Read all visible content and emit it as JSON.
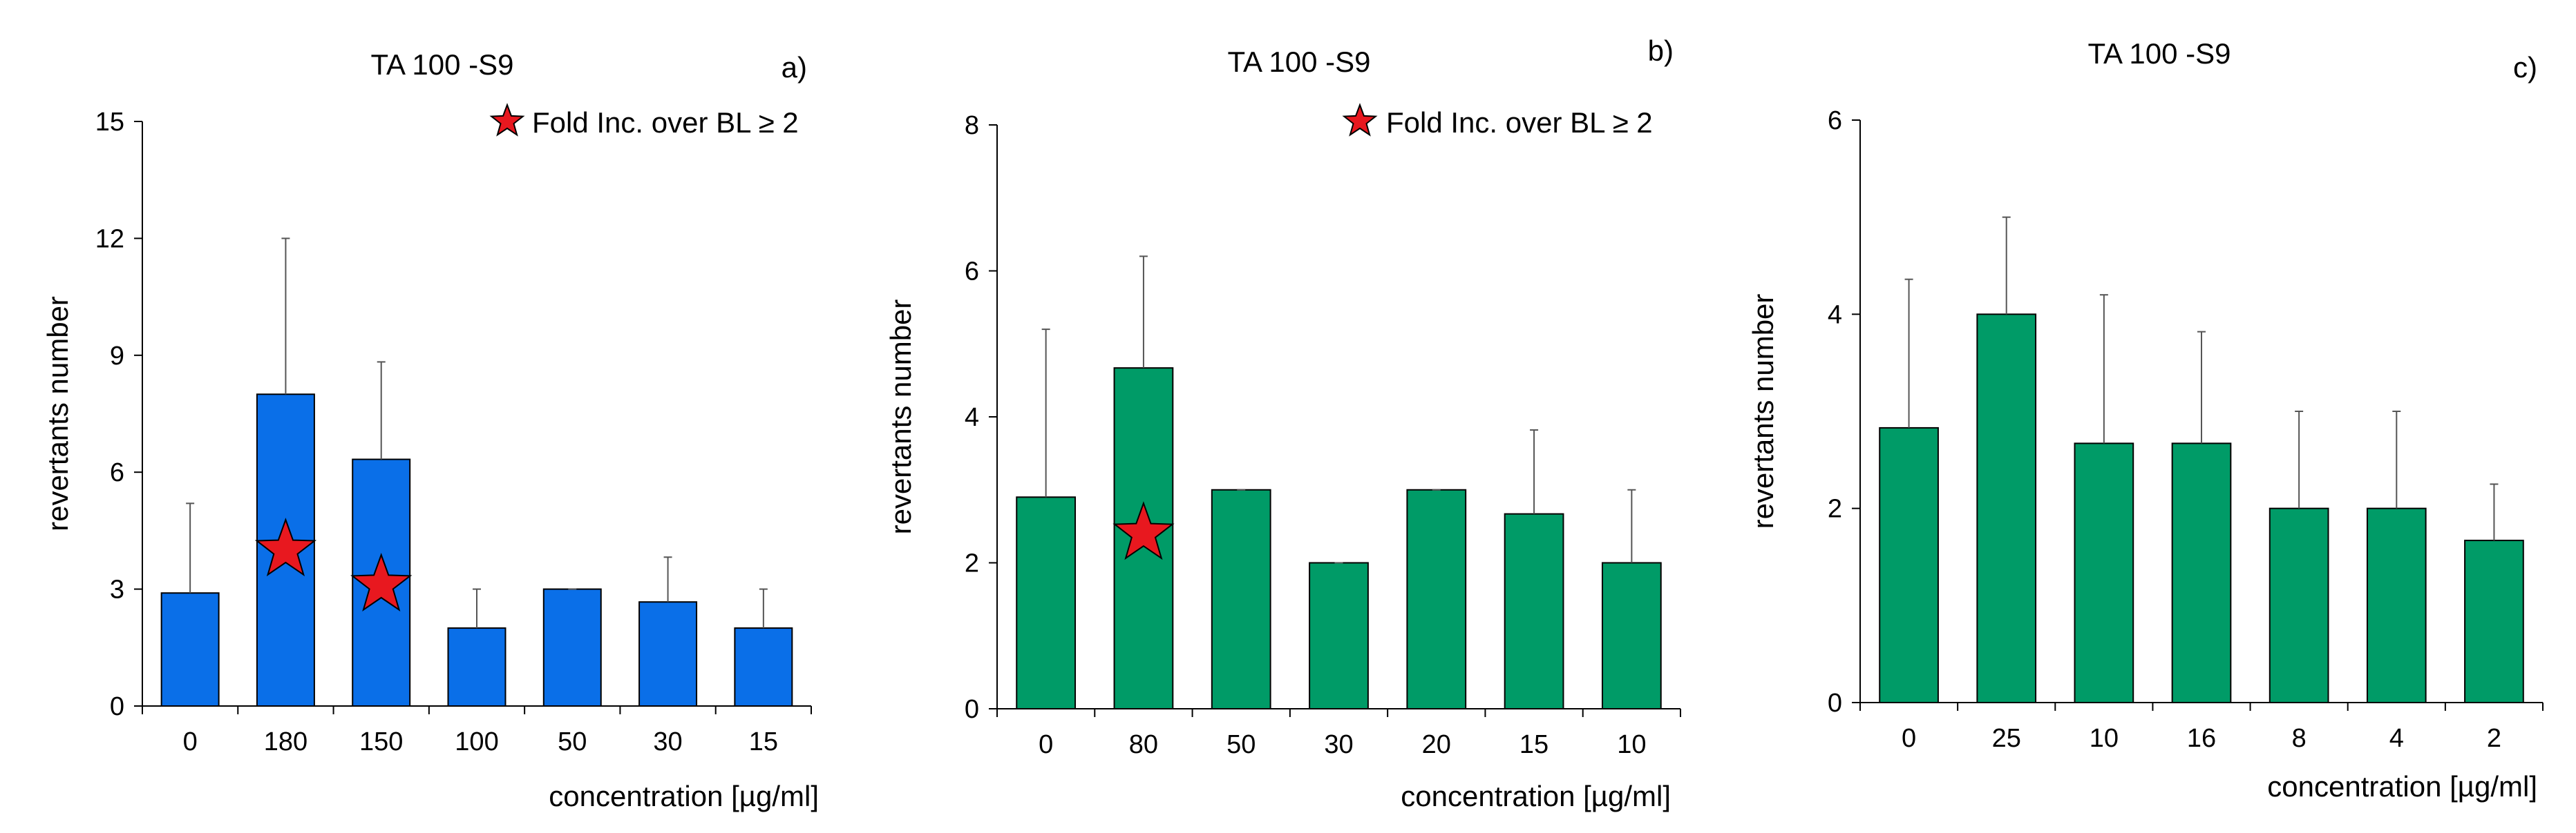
{
  "chart_data": [
    {
      "type": "bar",
      "title": "TA 100 -S9",
      "panel_label": "a)",
      "xlabel": "concentration [µg/ml]",
      "ylabel": "revertants number",
      "ylim": [
        0,
        15
      ],
      "yticks": [
        0,
        3,
        6,
        9,
        12,
        15
      ],
      "categories": [
        "0",
        "180",
        "150",
        "100",
        "50",
        "30",
        "15"
      ],
      "values": [
        2.9,
        8.0,
        6.33,
        2.0,
        3.0,
        2.67,
        2.0
      ],
      "errors": [
        2.3,
        4.0,
        2.5,
        1.0,
        0,
        1.15,
        1.0
      ],
      "bar_color": "#0A6FE8",
      "stars": [
        1,
        2
      ],
      "star_values": [
        4.0,
        3.1
      ],
      "legend": "Fold Inc. over BL ≥ 2",
      "grid": false
    },
    {
      "type": "bar",
      "title": "TA 100 -S9",
      "panel_label": "b)",
      "xlabel": "concentration [µg/ml]",
      "ylabel": "revertants number",
      "ylim": [
        0,
        8
      ],
      "yticks": [
        0,
        2,
        4,
        6,
        8
      ],
      "categories": [
        "0",
        "80",
        "50",
        "30",
        "20",
        "15",
        "10"
      ],
      "values": [
        2.9,
        4.67,
        3.0,
        2.0,
        3.0,
        2.67,
        2.0
      ],
      "errors": [
        2.3,
        1.53,
        0,
        0,
        0,
        1.15,
        1.0
      ],
      "bar_color": "#009B67",
      "stars": [
        1
      ],
      "star_values": [
        2.4
      ],
      "legend": "Fold Inc. over BL ≥ 2",
      "grid": false
    },
    {
      "type": "bar",
      "title": "TA 100 -S9",
      "panel_label": "c)",
      "xlabel": "concentration [µg/ml]",
      "ylabel": "revertants number",
      "ylim": [
        0,
        6
      ],
      "yticks": [
        0,
        2,
        4,
        6
      ],
      "categories": [
        "0",
        "25",
        "10",
        "16",
        "8",
        "4",
        "2"
      ],
      "values": [
        2.83,
        4.0,
        2.67,
        2.67,
        2.0,
        2.0,
        1.67
      ],
      "errors": [
        1.53,
        1.0,
        1.53,
        1.15,
        1.0,
        1.0,
        0.58
      ],
      "bar_color": "#009B67",
      "stars": [],
      "star_values": [],
      "legend": "",
      "grid": false
    }
  ]
}
